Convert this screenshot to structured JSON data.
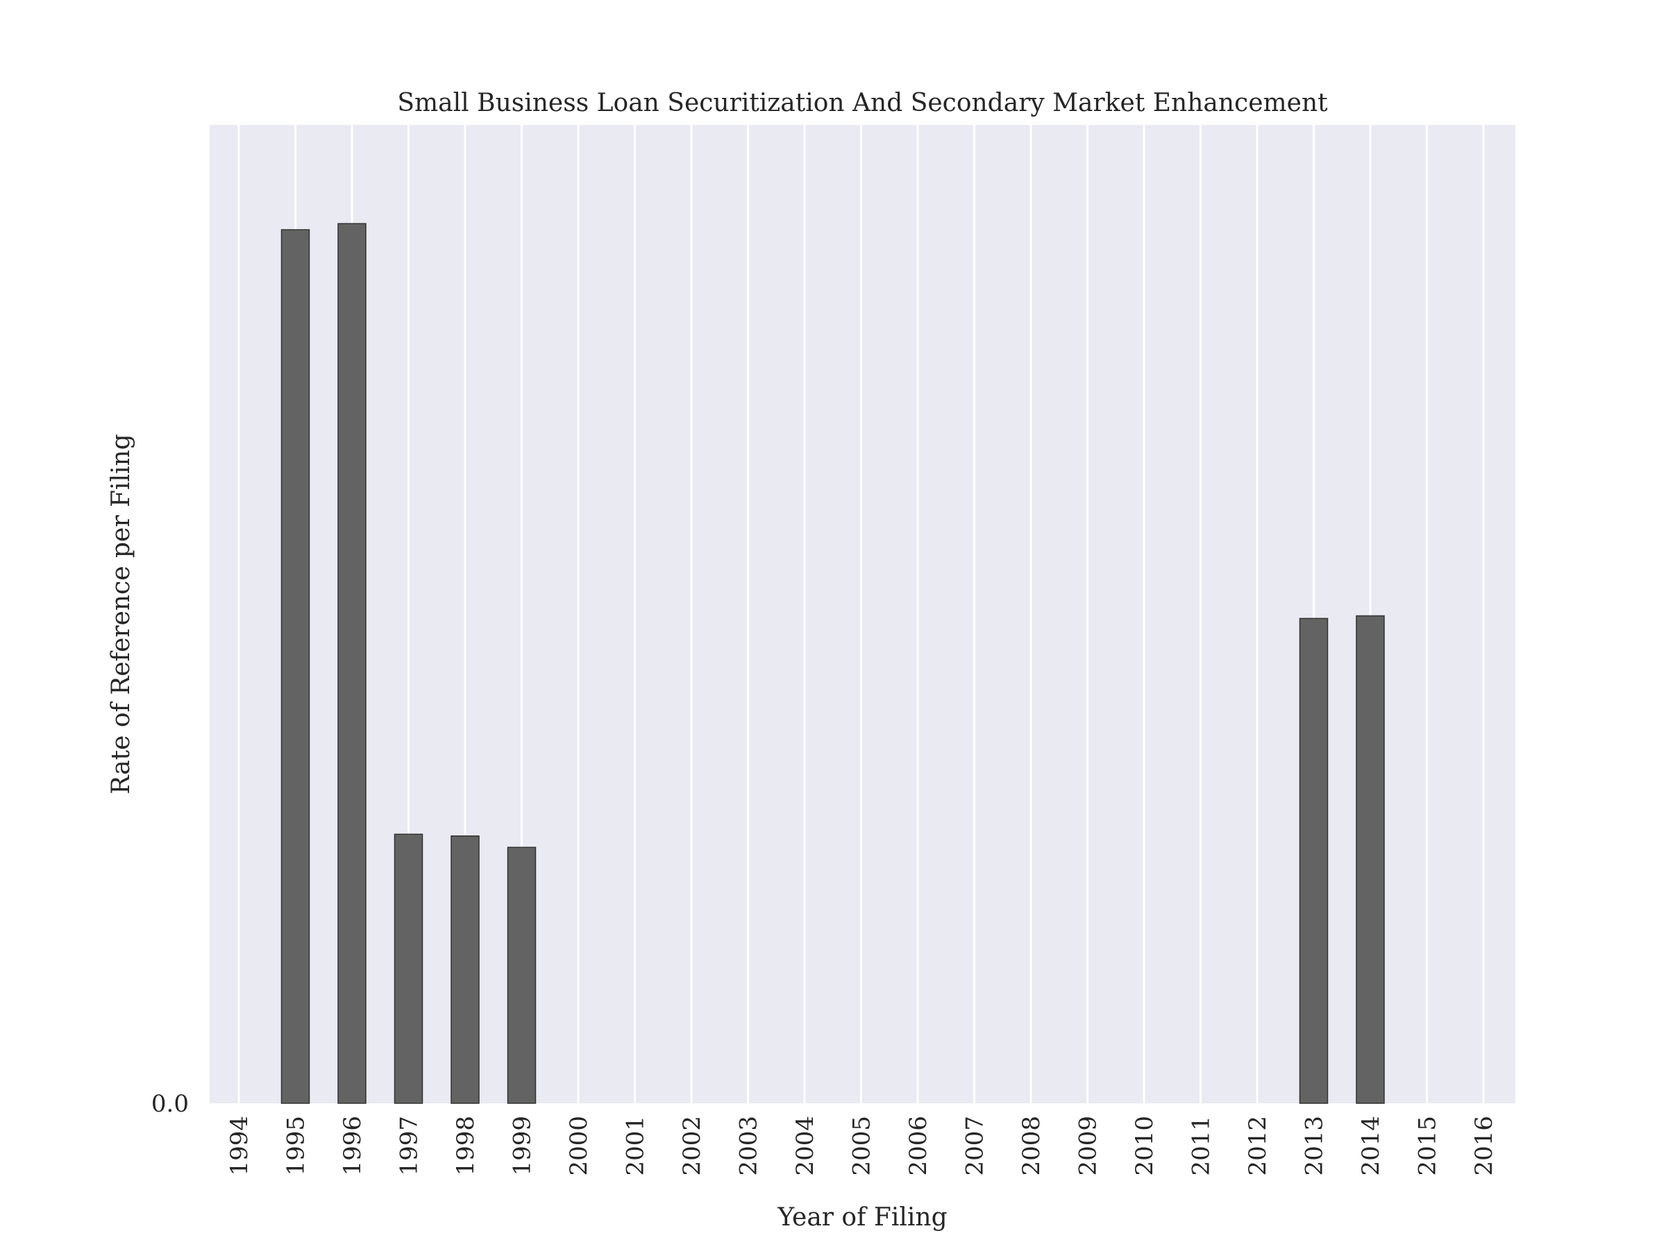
{
  "chart_data": {
    "type": "bar",
    "title": "Small Business Loan Securitization And Secondary Market Enhancement",
    "xlabel": "Year of Filing",
    "ylabel": "Rate of Reference per Filing",
    "categories": [
      "1994",
      "1995",
      "1996",
      "1997",
      "1998",
      "1999",
      "2000",
      "2001",
      "2002",
      "2003",
      "2004",
      "2005",
      "2006",
      "2007",
      "2008",
      "2009",
      "2010",
      "2011",
      "2012",
      "2013",
      "2014",
      "2015",
      "2016"
    ],
    "values": [
      0,
      1.0,
      1.007,
      0.308,
      0.306,
      0.293,
      0,
      0,
      0,
      0,
      0,
      0,
      0,
      0,
      0,
      0,
      0,
      0,
      0,
      0.555,
      0.558,
      0,
      0
    ],
    "ylim": [
      0,
      1.12
    ],
    "yticks": [
      0
    ],
    "ytick_labels": [
      "0.0"
    ],
    "grid": "vertical",
    "legend": "none",
    "colors": {
      "bar": "#636363",
      "axes_background": "#eaeaf2",
      "grid": "#ffffff"
    }
  }
}
